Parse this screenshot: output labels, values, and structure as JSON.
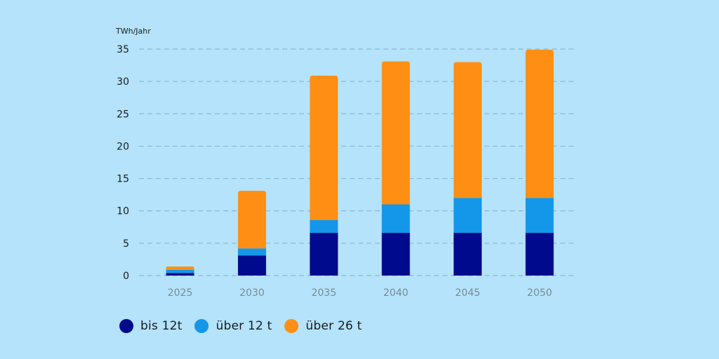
{
  "colors": {
    "background": "#b4e3fb",
    "series": [
      "#000a8c",
      "#1497e8",
      "#ff8f14"
    ]
  },
  "chart_data": {
    "type": "bar",
    "stacked": true,
    "unit_label": "TWh/Jahr",
    "categories": [
      "2025",
      "2030",
      "2035",
      "2040",
      "2045",
      "2050"
    ],
    "series": [
      {
        "name": "bis 12t",
        "values": [
          0.4,
          3.1,
          6.6,
          6.6,
          6.6,
          6.6
        ]
      },
      {
        "name": "über 12 t",
        "values": [
          0.5,
          1.1,
          2.0,
          4.4,
          5.4,
          5.4
        ]
      },
      {
        "name": "über 26 t",
        "values": [
          0.5,
          8.9,
          22.3,
          22.1,
          21.0,
          22.9
        ]
      }
    ],
    "ylim": [
      0,
      35
    ],
    "yticks": [
      "0",
      "5",
      "10",
      "15",
      "20",
      "25",
      "30",
      "35"
    ],
    "grid": true,
    "legend_position": "bottom-left"
  },
  "legend": {
    "items": [
      {
        "label": "bis 12t"
      },
      {
        "label": "über 12 t"
      },
      {
        "label": "über 26 t"
      }
    ]
  }
}
